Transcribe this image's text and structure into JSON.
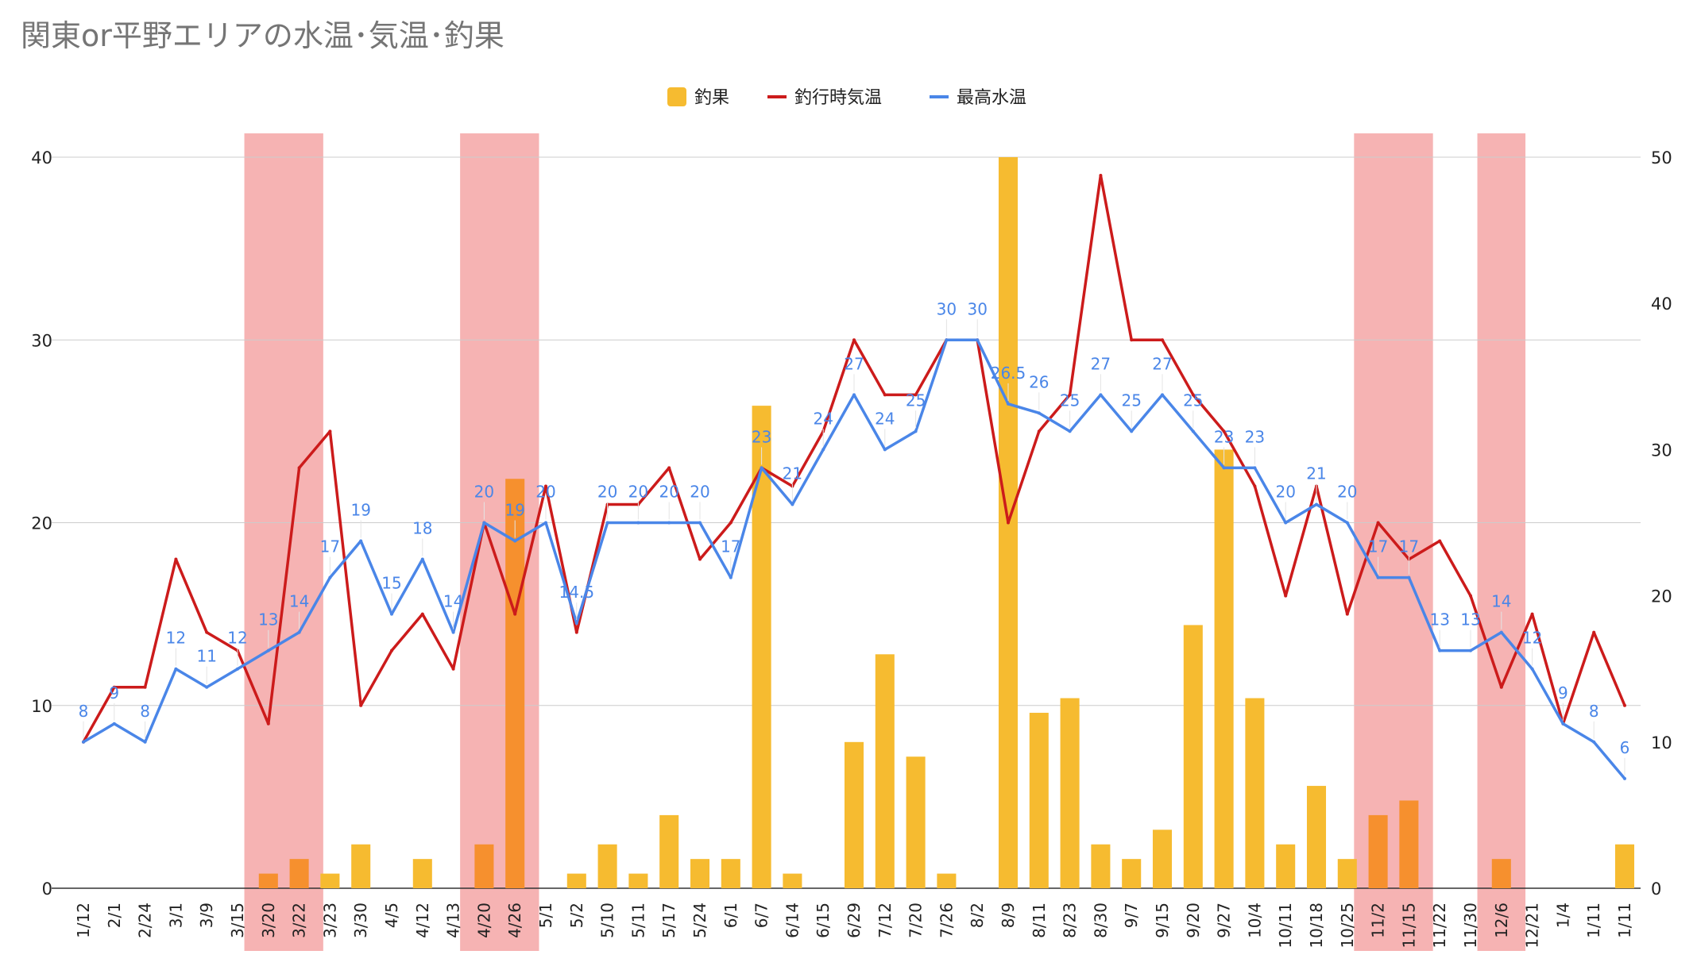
{
  "chart_data": {
    "type": "bar+line",
    "title": "関東or平野エリアの水温･気温･釣果",
    "categories": [
      "1/12",
      "2/1",
      "2/24",
      "3/1",
      "3/9",
      "3/15",
      "3/20",
      "3/22",
      "3/23",
      "3/30",
      "4/5",
      "4/12",
      "4/13",
      "4/20",
      "4/26",
      "5/1",
      "5/2",
      "5/10",
      "5/11",
      "5/17",
      "5/24",
      "6/1",
      "6/7",
      "6/14",
      "6/15",
      "6/29",
      "7/12",
      "7/20",
      "7/26",
      "8/2",
      "8/9",
      "8/11",
      "8/23",
      "8/30",
      "9/7",
      "9/15",
      "9/20",
      "9/27",
      "10/4",
      "10/11",
      "10/18",
      "10/25",
      "11/2",
      "11/15",
      "11/22",
      "11/30",
      "12/6",
      "12/21",
      "1/4",
      "1/11",
      "1/11"
    ],
    "left_axis": {
      "min": 0,
      "max": 40,
      "ticks": [
        "0",
        "10",
        "20",
        "30",
        "40"
      ]
    },
    "right_axis": {
      "min": 0,
      "max": 50,
      "ticks": [
        "0",
        "10",
        "20",
        "30",
        "40",
        "50"
      ]
    },
    "legend": {
      "position": "top",
      "items": [
        "釣果",
        "釣行時気温",
        "最高水温"
      ]
    },
    "series": [
      {
        "name": "釣果",
        "type": "bar",
        "axis": "right",
        "color": "#f6bb30",
        "values": [
          0,
          0,
          0,
          0,
          0,
          0,
          1,
          2,
          1,
          3,
          0,
          2,
          0,
          3,
          28,
          0,
          1,
          3,
          1,
          5,
          2,
          2,
          33,
          1,
          0,
          10,
          16,
          9,
          1,
          0,
          50,
          12,
          13,
          3,
          2,
          4,
          18,
          30,
          13,
          3,
          7,
          2,
          5,
          6,
          0,
          0,
          2,
          0,
          0,
          0,
          3
        ]
      },
      {
        "name": "釣行時気温",
        "type": "line",
        "axis": "left",
        "color": "#cc1b1b",
        "values": [
          8,
          11,
          11,
          18,
          14,
          13,
          9,
          23,
          25,
          10,
          13,
          15,
          12,
          20,
          15,
          22,
          14,
          21,
          21,
          23,
          18,
          20,
          23,
          22,
          25,
          30,
          27,
          27,
          30,
          30,
          20,
          25,
          27,
          39,
          30,
          30,
          27,
          25,
          22,
          16,
          22,
          15,
          20,
          18,
          19,
          16,
          11,
          15,
          9,
          14,
          10
        ]
      },
      {
        "name": "最高水温",
        "type": "line",
        "axis": "left",
        "color": "#4a86e8",
        "values": [
          8,
          9,
          8,
          12,
          11,
          12,
          13,
          14,
          17,
          19,
          15,
          18,
          14,
          20,
          19,
          20,
          14.5,
          20,
          20,
          20,
          20,
          17,
          23,
          21,
          24,
          27,
          24,
          25,
          30,
          30,
          26.5,
          26,
          25,
          27,
          25,
          27,
          25,
          23,
          23,
          20,
          21,
          20,
          17,
          17,
          13,
          13,
          14,
          12,
          9,
          8,
          6
        ],
        "labels": [
          "8",
          "9",
          "8",
          "12",
          "11",
          "12",
          "13",
          "14",
          "17",
          "19",
          "15",
          "18",
          "14",
          "20",
          "19",
          "20",
          "14.5",
          "20",
          "20",
          "20",
          "20",
          "17",
          "23",
          "21",
          "24",
          "27",
          "24",
          "25",
          "30",
          "30",
          "26.5",
          "26",
          "25",
          "27",
          "25",
          "27",
          "25",
          "23",
          "23",
          "20",
          "21",
          "20",
          "17",
          "17",
          "13",
          "13",
          "14",
          "12",
          "9",
          "8",
          "6"
        ]
      }
    ],
    "highlight_bands": [
      {
        "from": "3/20",
        "to": "3/22",
        "color": "#f4a0a0"
      },
      {
        "from": "4/20",
        "to": "4/26",
        "color": "#f4a0a0"
      },
      {
        "from": "11/2",
        "to": "11/15",
        "color": "#f4a0a0"
      },
      {
        "from": "12/6",
        "to": "12/6",
        "color": "#f4a0a0"
      }
    ],
    "highlight_bar_color": "#f6902e",
    "grid": true
  }
}
